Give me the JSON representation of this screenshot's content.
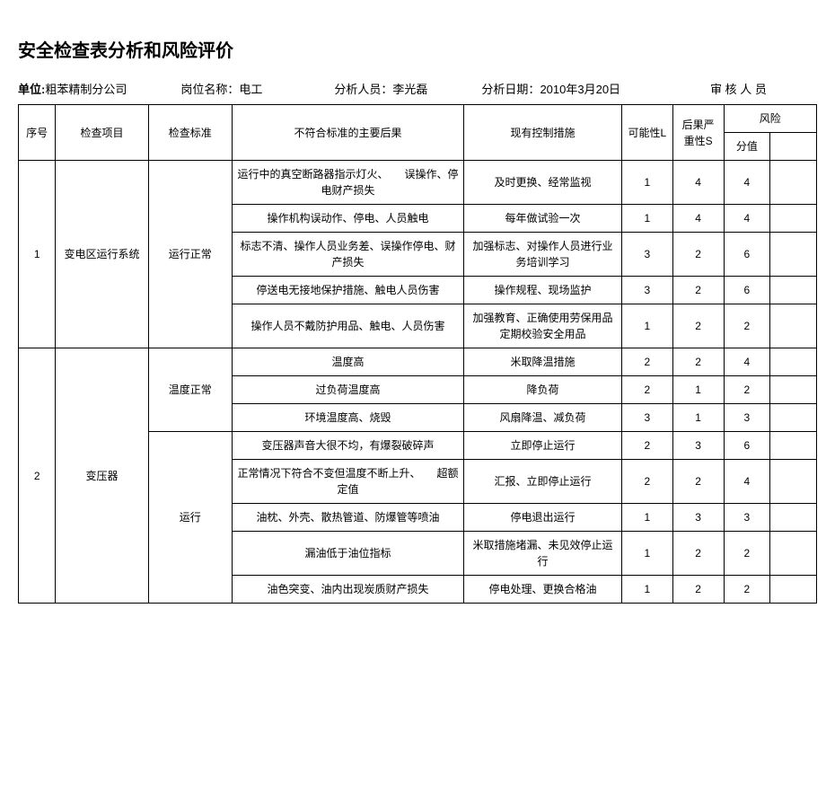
{
  "title": "安全检查表分析和风险评价",
  "meta": {
    "dept_label": "单位:",
    "dept_value": "粗苯精制分公司",
    "pos_label": "岗位名称：",
    "pos_value": "电工",
    "analyst_label": "分析人员：",
    "analyst_value": "李光磊",
    "date_label": "分析日期：",
    "date_value": "2010年3月20日",
    "reviewer_label": "审 核 人 员"
  },
  "headers": {
    "seq": "序号",
    "item": "检查项目",
    "std": "检查标准",
    "conseq": "不符合标准的主要后果",
    "control": "现有控制措施",
    "l": "可能性L",
    "s": "后果严重性S",
    "risk_group": "风险",
    "score": "分值"
  },
  "rows": [
    {
      "seq": "1",
      "item": "变电区运行系统",
      "std": "运行正常",
      "conseq": "运行中的真空断路器指示灯火、　　误操作、停电财产损失",
      "control": "及时更换、经常监视",
      "l": "1",
      "s": "4",
      "score": "4"
    },
    {
      "conseq": "操作机构误动作、停电、人员触电",
      "control": "每年做试验一次",
      "l": "1",
      "s": "4",
      "score": "4"
    },
    {
      "conseq": "标志不清、操作人员业务差、误操作停电、财产损失",
      "control": "加强标志、对操作人员进行业务培训学习",
      "l": "3",
      "s": "2",
      "score": "6"
    },
    {
      "conseq": "停送电无接地保护措施、触电人员伤害",
      "control": "操作规程、现场监护",
      "l": "3",
      "s": "2",
      "score": "6"
    },
    {
      "conseq": "操作人员不戴防护用品、触电、人员伤害",
      "control": "加强教育、正确使用劳保用品定期校验安全用品",
      "l": "1",
      "s": "2",
      "score": "2"
    },
    {
      "seq": "2",
      "item": "变压器",
      "std": "温度正常",
      "conseq": "温度高",
      "control": "米取降温措施",
      "l": "2",
      "s": "2",
      "score": "4"
    },
    {
      "conseq": "过负荷温度高",
      "control": "降负荷",
      "l": "2",
      "s": "1",
      "score": "2"
    },
    {
      "conseq": "环境温度高、烧毁",
      "control": "风扇降温、减负荷",
      "l": "3",
      "s": "1",
      "score": "3"
    },
    {
      "std": "运行",
      "conseq": "变压器声音大很不均，有爆裂破碎声",
      "control": "立即停止运行",
      "l": "2",
      "s": "3",
      "score": "6"
    },
    {
      "conseq": "正常情况下符合不变但温度不断上升、　　超额定值",
      "control": "汇报、立即停止运行",
      "l": "2",
      "s": "2",
      "score": "4"
    },
    {
      "conseq": "油枕、外壳、散热管道、防爆管等喷油",
      "control": "停电退出运行",
      "l": "1",
      "s": "3",
      "score": "3"
    },
    {
      "conseq": "漏油低于油位指标",
      "control": "米取措施堵漏、未见效停止运行",
      "l": "1",
      "s": "2",
      "score": "2"
    },
    {
      "conseq": "油色突变、油内出现炭质财产损失",
      "control": "停电处理、更换合格油",
      "l": "1",
      "s": "2",
      "score": "2"
    }
  ]
}
